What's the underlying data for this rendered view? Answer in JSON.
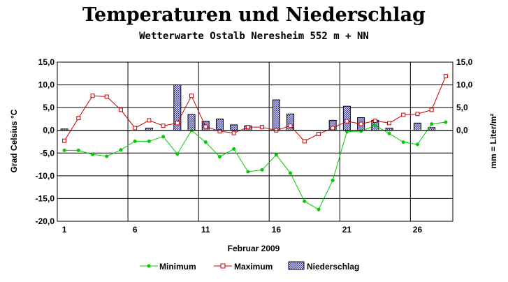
{
  "chart_data": {
    "type": "line",
    "title": "Temperaturen und Niederschlag",
    "subtitle": "Wetterwarte Ostalb Neresheim 552 m + NN",
    "xlabel": "Februar 2009",
    "ylabel_left": "Grad Celsius °C",
    "ylabel_right": "mm = Liter/m²",
    "x_ticks": [
      "1",
      "6",
      "11",
      "16",
      "21",
      "26"
    ],
    "y_ticks_left": [
      "15,0",
      "10,0",
      "5,0",
      "0,0",
      "-5,0",
      "-10,0",
      "-15,0",
      "-20,0"
    ],
    "y_ticks_right": [
      "15,0",
      "10,0",
      "5,0",
      "0,0"
    ],
    "ylim": [
      -20,
      15
    ],
    "xlim": [
      0.5,
      28.5
    ],
    "days": [
      1,
      2,
      3,
      4,
      5,
      6,
      7,
      8,
      9,
      10,
      11,
      12,
      13,
      14,
      15,
      16,
      17,
      18,
      19,
      20,
      21,
      22,
      23,
      24,
      25,
      26,
      27,
      28
    ],
    "series": [
      {
        "name": "Minimum",
        "kind": "line",
        "color": "#00cc00",
        "values": [
          -4.4,
          -4.4,
          -5.3,
          -5.7,
          -4.3,
          -2.4,
          -2.4,
          -1.4,
          -5.2,
          0.0,
          -2.6,
          -5.8,
          -4.1,
          -9.1,
          -8.7,
          -5.4,
          -9.4,
          -15.6,
          -17.4,
          -11.0,
          -0.3,
          -0.2,
          1.1,
          -0.7,
          -2.6,
          -3.1,
          1.4,
          1.8
        ]
      },
      {
        "name": "Maximum",
        "kind": "line",
        "color": "#cc0000",
        "values": [
          -2.3,
          2.7,
          7.6,
          7.4,
          4.5,
          0.5,
          2.2,
          1.0,
          1.6,
          7.6,
          0.8,
          -0.2,
          -0.6,
          0.7,
          0.7,
          0.0,
          1.0,
          -2.4,
          -0.8,
          0.5,
          2.0,
          1.4,
          2.1,
          1.6,
          3.4,
          3.6,
          4.5,
          11.9
        ]
      },
      {
        "name": "Niederschlag",
        "kind": "bar",
        "color": "#0000cc",
        "values": [
          0.3,
          0,
          0,
          0,
          0,
          0,
          0.5,
          0,
          10.0,
          3.5,
          2.0,
          2.5,
          1.2,
          1.0,
          0,
          6.7,
          3.6,
          0,
          0,
          2.2,
          5.3,
          2.8,
          2.2,
          0.5,
          0,
          1.6,
          0.6,
          0
        ]
      }
    ],
    "grid": true,
    "legend_position": "bottom"
  },
  "legend": {
    "minimum": "Minimum",
    "maximum": "Maximum",
    "precip": "Niederschlag"
  }
}
